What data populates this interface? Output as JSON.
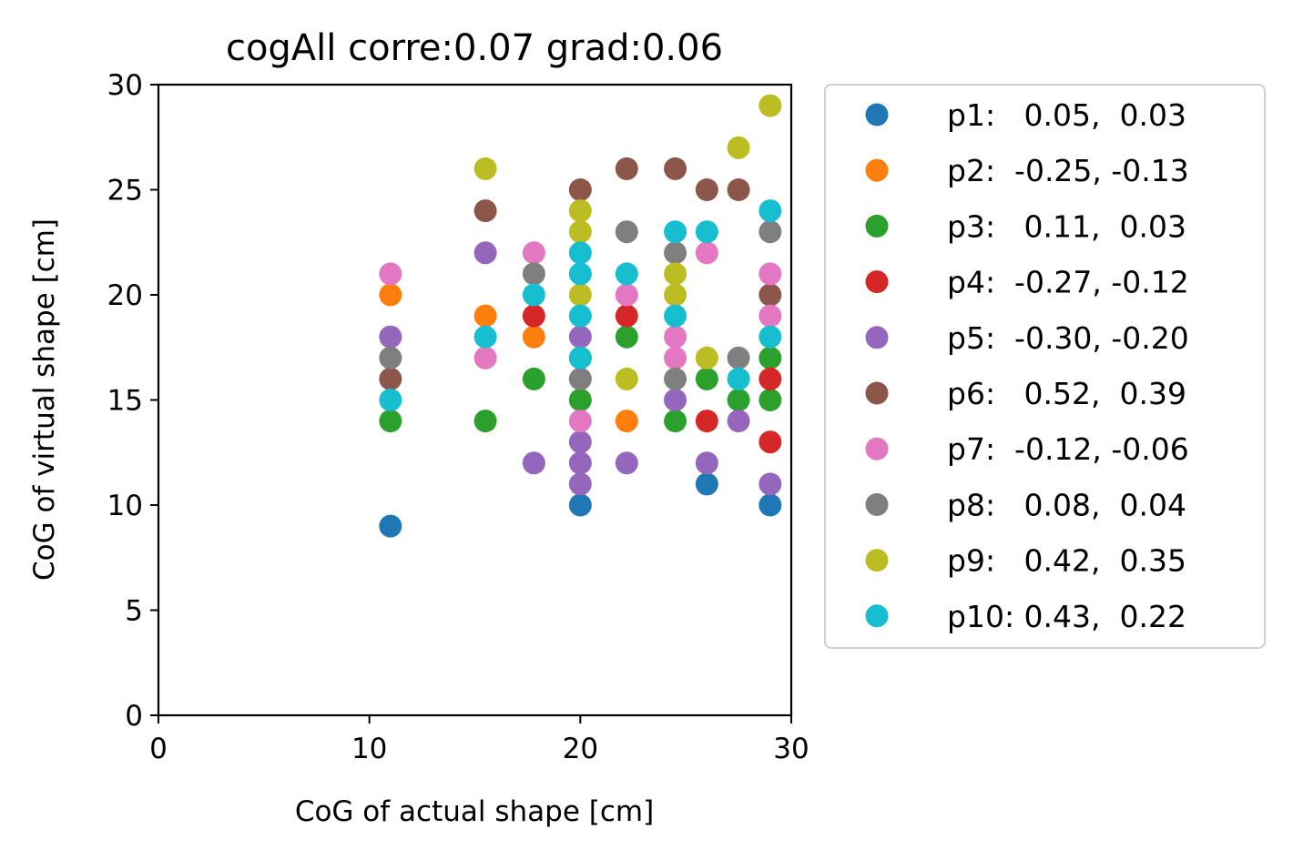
{
  "chart_data": {
    "type": "scatter",
    "title": "cogAll corre:0.07 grad:0.06",
    "xlabel": "CoG of actual shape [cm]",
    "ylabel": "CoG of virtual shape [cm]",
    "xlim": [
      0,
      30
    ],
    "ylim": [
      0,
      30
    ],
    "xticks": [
      "0",
      "10",
      "20",
      "30"
    ],
    "yticks": [
      "0",
      "5",
      "10",
      "15",
      "20",
      "25",
      "30"
    ],
    "grid": false,
    "legend_position": "outside-right",
    "series": [
      {
        "name": "p1:   0.05,  0.03",
        "color": "#1f77b4",
        "points": [
          [
            11,
            9
          ],
          [
            20,
            10
          ],
          [
            26,
            11
          ],
          [
            29,
            10
          ]
        ]
      },
      {
        "name": "p2:  -0.25, -0.13",
        "color": "#ff7f0e",
        "points": [
          [
            11,
            20
          ],
          [
            15.5,
            19
          ],
          [
            17.8,
            18
          ],
          [
            22.2,
            14
          ]
        ]
      },
      {
        "name": "p3:   0.11,  0.03",
        "color": "#2ca02c",
        "points": [
          [
            11,
            14
          ],
          [
            15.5,
            14
          ],
          [
            17.8,
            16
          ],
          [
            20,
            15
          ],
          [
            20,
            17
          ],
          [
            22.2,
            18
          ],
          [
            24.5,
            14
          ],
          [
            26,
            16
          ],
          [
            27.5,
            15
          ],
          [
            29,
            17
          ],
          [
            29,
            15
          ]
        ]
      },
      {
        "name": "p4:  -0.27, -0.12",
        "color": "#d62728",
        "points": [
          [
            17.8,
            19
          ],
          [
            22.2,
            19
          ],
          [
            26,
            14
          ],
          [
            29,
            16
          ],
          [
            29,
            13
          ]
        ]
      },
      {
        "name": "p5:  -0.30, -0.20",
        "color": "#9467bd",
        "points": [
          [
            11,
            18
          ],
          [
            15.5,
            22
          ],
          [
            17.8,
            12
          ],
          [
            20,
            18
          ],
          [
            20,
            13
          ],
          [
            20,
            12
          ],
          [
            20,
            11
          ],
          [
            22.2,
            12
          ],
          [
            24.5,
            15
          ],
          [
            26,
            12
          ],
          [
            27.5,
            14
          ],
          [
            29,
            11
          ]
        ]
      },
      {
        "name": "p6:   0.52,  0.39",
        "color": "#8c564b",
        "points": [
          [
            11,
            16
          ],
          [
            15.5,
            24
          ],
          [
            20,
            25
          ],
          [
            22.2,
            26
          ],
          [
            24.5,
            26
          ],
          [
            26,
            25
          ],
          [
            27.5,
            25
          ],
          [
            29,
            20
          ]
        ]
      },
      {
        "name": "p7:  -0.12, -0.06",
        "color": "#e377c2",
        "points": [
          [
            11,
            21
          ],
          [
            15.5,
            17
          ],
          [
            17.8,
            22
          ],
          [
            20,
            14
          ],
          [
            22.2,
            20
          ],
          [
            24.5,
            18
          ],
          [
            24.5,
            17
          ],
          [
            26,
            22
          ],
          [
            29,
            21
          ],
          [
            29,
            19
          ]
        ]
      },
      {
        "name": "p8:   0.08,  0.04",
        "color": "#7f7f7f",
        "points": [
          [
            11,
            17
          ],
          [
            17.8,
            21
          ],
          [
            20,
            16
          ],
          [
            22.2,
            23
          ],
          [
            24.5,
            22
          ],
          [
            24.5,
            16
          ],
          [
            27.5,
            17
          ],
          [
            29,
            23
          ]
        ]
      },
      {
        "name": "p9:   0.42,  0.35",
        "color": "#bcbd22",
        "points": [
          [
            15.5,
            26
          ],
          [
            20,
            24
          ],
          [
            20,
            23
          ],
          [
            20,
            20
          ],
          [
            22.2,
            16
          ],
          [
            24.5,
            21
          ],
          [
            24.5,
            20
          ],
          [
            26,
            17
          ],
          [
            27.5,
            27
          ],
          [
            29,
            29
          ]
        ]
      },
      {
        "name": "p10: 0.43,  0.22",
        "color": "#17becf",
        "points": [
          [
            11,
            15
          ],
          [
            15.5,
            18
          ],
          [
            17.8,
            20
          ],
          [
            20,
            22
          ],
          [
            20,
            21
          ],
          [
            20,
            19
          ],
          [
            20,
            17
          ],
          [
            22.2,
            21
          ],
          [
            24.5,
            23
          ],
          [
            24.5,
            19
          ],
          [
            26,
            23
          ],
          [
            27.5,
            16
          ],
          [
            29,
            24
          ],
          [
            29,
            18
          ]
        ]
      }
    ]
  }
}
